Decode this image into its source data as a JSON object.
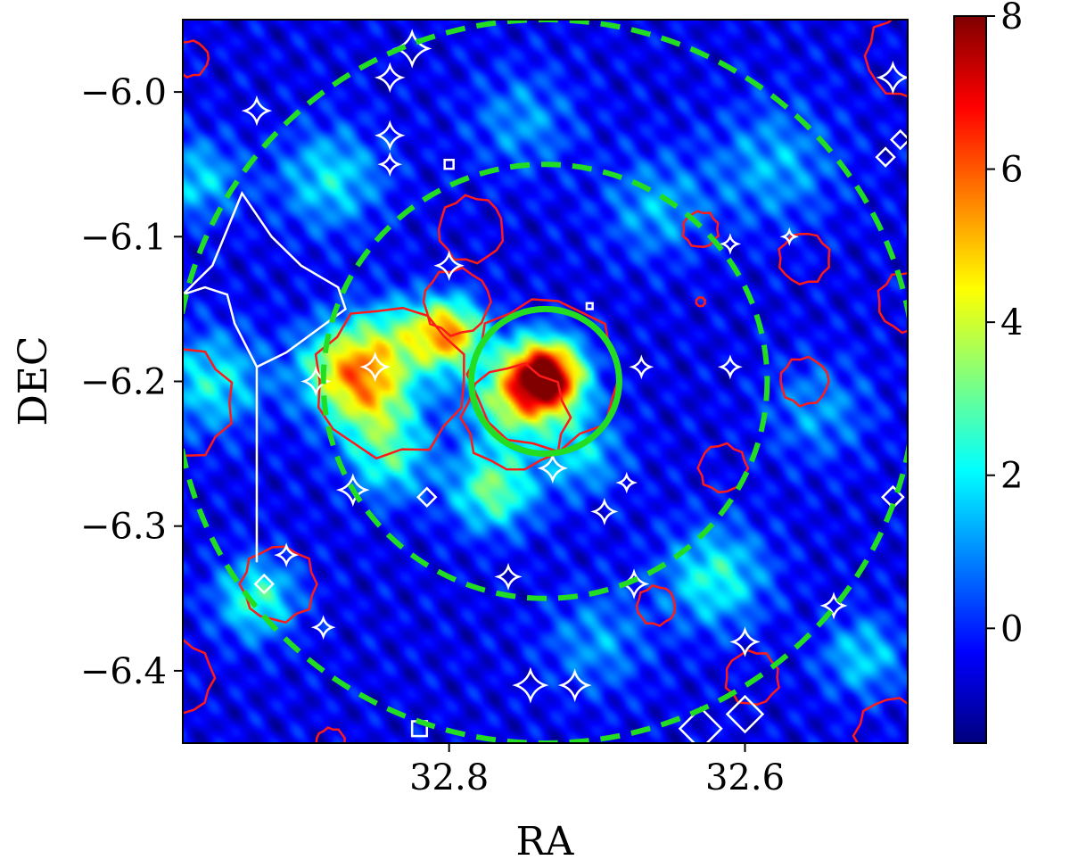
{
  "chart_data": {
    "type": "heatmap",
    "xlabel": "RA",
    "ylabel": "DEC",
    "xlim": [
      32.98,
      32.49
    ],
    "ylim": [
      -6.45,
      -5.95
    ],
    "x_ticks": [
      {
        "value": 32.8,
        "label": "32.8"
      },
      {
        "value": 32.6,
        "label": "32.6"
      }
    ],
    "y_ticks": [
      {
        "value": -6.0,
        "label": "−6.0"
      },
      {
        "value": -6.1,
        "label": "−6.1"
      },
      {
        "value": -6.2,
        "label": "−6.2"
      },
      {
        "value": -6.3,
        "label": "−6.3"
      },
      {
        "value": -6.4,
        "label": "−6.4"
      }
    ],
    "colorbar": {
      "colormap": "jet",
      "range": [
        -1.5,
        8
      ],
      "ticks": [
        {
          "value": 8,
          "label": "8"
        },
        {
          "value": 6,
          "label": "6"
        },
        {
          "value": 4,
          "label": "4"
        },
        {
          "value": 2,
          "label": "2"
        },
        {
          "value": 0,
          "label": "0"
        }
      ]
    },
    "background_level": -0.5,
    "blobs": [
      {
        "ra": 32.735,
        "dec": -6.197,
        "sigma": 0.018,
        "amp": 9.0
      },
      {
        "ra": 32.76,
        "dec": -6.215,
        "sigma": 0.022,
        "amp": 3.2
      },
      {
        "ra": 32.8,
        "dec": -6.167,
        "sigma": 0.017,
        "amp": 5.5
      },
      {
        "ra": 32.87,
        "dec": -6.19,
        "sigma": 0.022,
        "amp": 4.5
      },
      {
        "ra": 32.85,
        "dec": -6.215,
        "sigma": 0.022,
        "amp": 3.2
      },
      {
        "ra": 32.835,
        "dec": -6.17,
        "sigma": 0.02,
        "amp": 2.5
      },
      {
        "ra": 32.77,
        "dec": -6.275,
        "sigma": 0.02,
        "amp": 3.6
      },
      {
        "ra": 32.84,
        "dec": -6.255,
        "sigma": 0.02,
        "amp": 2.6
      },
      {
        "ra": 32.71,
        "dec": -6.25,
        "sigma": 0.02,
        "amp": 2.2
      },
      {
        "ra": 32.62,
        "dec": -6.335,
        "sigma": 0.025,
        "amp": 2.8
      },
      {
        "ra": 32.88,
        "dec": -6.06,
        "sigma": 0.025,
        "amp": 2.4
      },
      {
        "ra": 32.96,
        "dec": -6.2,
        "sigma": 0.025,
        "amp": 2.6
      },
      {
        "ra": 32.93,
        "dec": -6.35,
        "sigma": 0.02,
        "amp": 3.0
      },
      {
        "ra": 32.52,
        "dec": -6.39,
        "sigma": 0.02,
        "amp": 2.2
      },
      {
        "ra": 32.58,
        "dec": -6.05,
        "sigma": 0.03,
        "amp": 1.8
      },
      {
        "ra": 32.66,
        "dec": -6.08,
        "sigma": 0.025,
        "amp": 1.8
      },
      {
        "ra": 32.97,
        "dec": -6.06,
        "sigma": 0.02,
        "amp": 2.2
      },
      {
        "ra": 32.75,
        "dec": -6.02,
        "sigma": 0.025,
        "amp": 1.6
      },
      {
        "ra": 32.55,
        "dec": -6.22,
        "sigma": 0.025,
        "amp": 1.6
      },
      {
        "ra": 32.7,
        "dec": -6.38,
        "sigma": 0.025,
        "amp": 1.6
      }
    ],
    "dashed_circles": [
      {
        "ra": 32.735,
        "dec": -6.2,
        "radius_deg": 0.15,
        "color": "#22dd22"
      },
      {
        "ra": 32.735,
        "dec": -6.2,
        "radius_deg": 0.25,
        "color": "#22dd22"
      }
    ],
    "solid_circle": {
      "ra": 32.735,
      "dec": -6.2,
      "radius_deg": 0.05,
      "color": "#22dd22"
    },
    "red_contours": [
      {
        "ra": 32.84,
        "dec": -6.2,
        "r": 0.05
      },
      {
        "ra": 32.795,
        "dec": -6.145,
        "r": 0.022
      },
      {
        "ra": 32.755,
        "dec": -6.225,
        "r": 0.035
      },
      {
        "ra": 32.735,
        "dec": -6.195,
        "r": 0.05
      },
      {
        "ra": 32.785,
        "dec": -6.095,
        "r": 0.022
      },
      {
        "ra": 32.63,
        "dec": -6.095,
        "r": 0.012
      },
      {
        "ra": 32.56,
        "dec": -6.115,
        "r": 0.017
      },
      {
        "ra": 32.56,
        "dec": -6.2,
        "r": 0.016
      },
      {
        "ra": 32.615,
        "dec": -6.26,
        "r": 0.016
      },
      {
        "ra": 32.915,
        "dec": -6.34,
        "r": 0.025
      },
      {
        "ra": 32.66,
        "dec": -6.355,
        "r": 0.013
      },
      {
        "ra": 32.595,
        "dec": -6.405,
        "r": 0.018
      },
      {
        "ra": 32.985,
        "dec": -6.215,
        "r": 0.038
      },
      {
        "ra": 32.975,
        "dec": -5.977,
        "r": 0.012
      },
      {
        "ra": 32.985,
        "dec": -6.405,
        "r": 0.025
      },
      {
        "ra": 32.5,
        "dec": -6.445,
        "r": 0.025
      },
      {
        "ra": 32.49,
        "dec": -5.975,
        "r": 0.028
      },
      {
        "ra": 32.88,
        "dec": -6.45,
        "r": 0.01
      },
      {
        "ra": 32.63,
        "dec": -6.145,
        "r": 0.003
      },
      {
        "ra": 32.49,
        "dec": -6.145,
        "r": 0.02
      }
    ],
    "white_stars": [
      {
        "ra": 32.825,
        "dec": -5.97,
        "s": 0.011
      },
      {
        "ra": 32.84,
        "dec": -5.99,
        "s": 0.008
      },
      {
        "ra": 32.93,
        "dec": -6.013,
        "s": 0.008
      },
      {
        "ra": 32.84,
        "dec": -6.03,
        "s": 0.008
      },
      {
        "ra": 32.84,
        "dec": -6.05,
        "s": 0.006
      },
      {
        "ra": 32.8,
        "dec": -6.12,
        "s": 0.008
      },
      {
        "ra": 32.85,
        "dec": -6.19,
        "s": 0.008
      },
      {
        "ra": 32.89,
        "dec": -6.2,
        "s": 0.008
      },
      {
        "ra": 32.67,
        "dec": -6.19,
        "s": 0.006
      },
      {
        "ra": 32.61,
        "dec": -6.19,
        "s": 0.006
      },
      {
        "ra": 32.61,
        "dec": -6.105,
        "s": 0.005
      },
      {
        "ra": 32.57,
        "dec": -6.1,
        "s": 0.004
      },
      {
        "ra": 32.73,
        "dec": -6.26,
        "s": 0.008
      },
      {
        "ra": 32.865,
        "dec": -6.275,
        "s": 0.009
      },
      {
        "ra": 32.68,
        "dec": -6.27,
        "s": 0.005
      },
      {
        "ra": 32.695,
        "dec": -6.29,
        "s": 0.007
      },
      {
        "ra": 32.76,
        "dec": -6.335,
        "s": 0.007
      },
      {
        "ra": 32.675,
        "dec": -6.34,
        "s": 0.008
      },
      {
        "ra": 32.54,
        "dec": -6.355,
        "s": 0.007
      },
      {
        "ra": 32.885,
        "dec": -6.37,
        "s": 0.006
      },
      {
        "ra": 32.91,
        "dec": -6.32,
        "s": 0.006
      },
      {
        "ra": 32.6,
        "dec": -6.38,
        "s": 0.008
      },
      {
        "ra": 32.745,
        "dec": -6.41,
        "s": 0.01
      },
      {
        "ra": 32.715,
        "dec": -6.41,
        "s": 0.009
      },
      {
        "ra": 32.5,
        "dec": -5.99,
        "s": 0.009
      }
    ],
    "white_diamonds": [
      {
        "ra": 32.815,
        "dec": -6.28,
        "s": 0.006
      },
      {
        "ra": 32.925,
        "dec": -6.34,
        "s": 0.006
      },
      {
        "ra": 32.505,
        "dec": -6.045,
        "s": 0.006
      },
      {
        "ra": 32.495,
        "dec": -6.033,
        "s": 0.006
      },
      {
        "ra": 32.5,
        "dec": -6.28,
        "s": 0.007
      },
      {
        "ra": 32.6,
        "dec": -6.43,
        "s": 0.012
      },
      {
        "ra": 32.63,
        "dec": -6.44,
        "s": 0.014
      }
    ],
    "white_squares": [
      {
        "ra": 32.8,
        "dec": -6.05,
        "s": 0.003
      },
      {
        "ra": 32.705,
        "dec": -6.148,
        "s": 0.002
      },
      {
        "ra": 32.82,
        "dec": -6.44,
        "s": 0.005
      }
    ],
    "white_region": [
      [
        32.98,
        -6.14
      ],
      [
        32.96,
        -6.12
      ],
      [
        32.94,
        -6.07
      ],
      [
        32.92,
        -6.1
      ],
      [
        32.9,
        -6.12
      ],
      [
        32.875,
        -6.135
      ],
      [
        32.87,
        -6.15
      ],
      [
        32.89,
        -6.165
      ],
      [
        32.91,
        -6.18
      ],
      [
        32.93,
        -6.19
      ],
      [
        32.945,
        -6.16
      ],
      [
        32.95,
        -6.14
      ],
      [
        32.965,
        -6.135
      ]
    ],
    "white_line": [
      [
        32.93,
        -6.19
      ],
      [
        32.93,
        -6.325
      ]
    ]
  }
}
